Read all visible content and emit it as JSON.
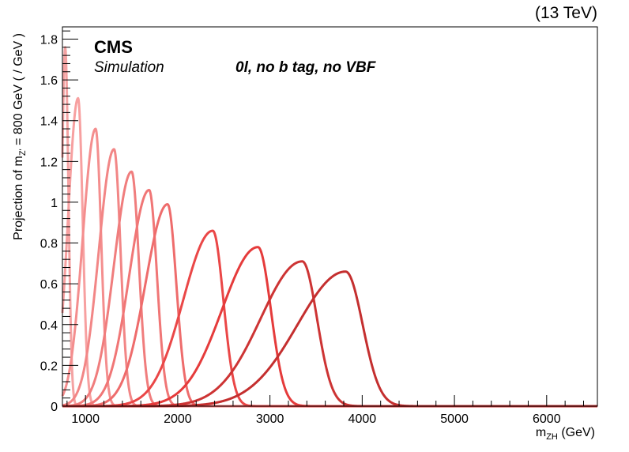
{
  "chart_data": {
    "type": "line",
    "energy_label": "(13 TeV)",
    "experiment": "CMS",
    "experiment_sub": "Simulation",
    "category": "0l, no b tag, no VBF",
    "ylabel": {
      "pre": "Projection of m",
      "sub": "Z'",
      "post": " = 800 GeV ( / GeV )"
    },
    "xlabel": {
      "pre": "m",
      "sub": "ZH",
      "post": " (GeV)"
    },
    "xlim": [
      750,
      6550
    ],
    "ylim": [
      0,
      1.86
    ],
    "xticks": [
      1000,
      2000,
      3000,
      4000,
      5000,
      6000
    ],
    "xtick_labels": [
      "1000",
      "2000",
      "3000",
      "4000",
      "5000",
      "6000"
    ],
    "yticks": [
      0,
      0.2,
      0.4,
      0.6,
      0.8,
      1.0,
      1.2,
      1.4,
      1.6,
      1.8
    ],
    "ytick_labels": [
      "0",
      "0.2",
      "0.4",
      "0.6",
      "0.8",
      "1",
      "1.2",
      "1.4",
      "1.6",
      "1.8"
    ],
    "series": [
      {
        "peak": 780,
        "height": 1.76,
        "sigma_low": 35,
        "sigma_high": 35,
        "color": "#f4a3a3"
      },
      {
        "peak": 920,
        "height": 1.51,
        "sigma_low": 110,
        "sigma_high": 50,
        "color": "#f7a0a0"
      },
      {
        "peak": 1110,
        "height": 1.36,
        "sigma_low": 140,
        "sigma_high": 60,
        "color": "#f48e8e"
      },
      {
        "peak": 1310,
        "height": 1.26,
        "sigma_low": 165,
        "sigma_high": 70,
        "color": "#f28686"
      },
      {
        "peak": 1500,
        "height": 1.15,
        "sigma_low": 190,
        "sigma_high": 80,
        "color": "#f07d7d"
      },
      {
        "peak": 1690,
        "height": 1.06,
        "sigma_low": 215,
        "sigma_high": 85,
        "color": "#f07676"
      },
      {
        "peak": 1890,
        "height": 0.99,
        "sigma_low": 240,
        "sigma_high": 95,
        "color": "#ee6c6c"
      },
      {
        "peak": 2380,
        "height": 0.86,
        "sigma_low": 320,
        "sigma_high": 115,
        "color": "#ea4747"
      },
      {
        "peak": 2870,
        "height": 0.78,
        "sigma_low": 390,
        "sigma_high": 140,
        "color": "#e53b3b"
      },
      {
        "peak": 3350,
        "height": 0.71,
        "sigma_low": 450,
        "sigma_high": 160,
        "color": "#cd3434"
      },
      {
        "peak": 3820,
        "height": 0.66,
        "sigma_low": 520,
        "sigma_high": 185,
        "color": "#c42f2f"
      }
    ]
  }
}
